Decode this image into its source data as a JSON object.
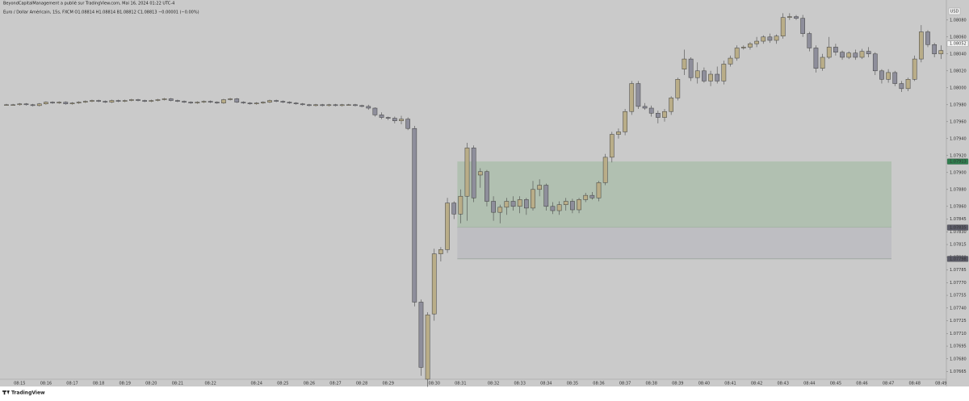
{
  "header": {
    "publisher": "BeyondCapitalManagement a publié sur TradingView.com, Mai 16, 2024 01:22 UTC-4",
    "symbol": "Euro / Dollar Américain, 15s, FXCM  O1.08814 H1.08814 B1.08812 C1.08813 −0.00001 (−0.00%)"
  },
  "footer": {
    "logo": "TradingView"
  },
  "chart_data": {
    "type": "candlestick",
    "currency": "USD",
    "up_color": "#b9ad88",
    "down_color": "#8e8e9b",
    "grid": false,
    "ylim": [
      1.07656,
      1.08096
    ],
    "yticks": [
      {
        "value": 1.0808,
        "label": "1.08080"
      },
      {
        "value": 1.0806,
        "label": "1.08060"
      },
      {
        "value": 1.0804,
        "label": "1.08040"
      },
      {
        "value": 1.0802,
        "label": "1.08020"
      },
      {
        "value": 1.08,
        "label": "1.08000"
      },
      {
        "value": 1.0798,
        "label": "1.07980"
      },
      {
        "value": 1.0796,
        "label": "1.07960"
      },
      {
        "value": 1.0794,
        "label": "1.07940"
      },
      {
        "value": 1.0792,
        "label": "1.07920"
      },
      {
        "value": 1.079,
        "label": "1.07900"
      },
      {
        "value": 1.0788,
        "label": "1.07880"
      },
      {
        "value": 1.0786,
        "label": "1.07860"
      },
      1.07845,
      {
        "value": 1.0783,
        "label": "1.07830"
      },
      1.07815,
      {
        "value": 1.078,
        "label": "1.07800"
      },
      1.07785,
      {
        "value": 1.0777,
        "label": "1.07770"
      },
      1.07755,
      {
        "value": 1.0774,
        "label": "1.07740"
      },
      1.07725,
      {
        "value": 1.0771,
        "label": "1.07710"
      },
      1.07695,
      {
        "value": 1.0768,
        "label": "1.07680"
      },
      1.07665
    ],
    "price_labels": [
      {
        "price": 1.08052,
        "color": "#f4f4f4",
        "text_color": "#333333"
      },
      {
        "price": 1.07913,
        "color": "#2f7d4e",
        "text_color": "#ffffff"
      },
      {
        "price": 1.07835,
        "color": "#5c5c68",
        "text_color": "#ffffff"
      },
      {
        "price": 1.07798,
        "color": "#5c5c68",
        "text_color": "#ffffff"
      }
    ],
    "zones": [
      {
        "top": 1.07913,
        "bottom": 1.07835,
        "color": "#b1c0b1"
      },
      {
        "top": 1.07835,
        "bottom": 1.07798,
        "color": "#bebec2"
      }
    ],
    "categories": [
      null,
      null,
      "08:15",
      null,
      null,
      null,
      "08:16",
      null,
      null,
      null,
      "08:17",
      null,
      null,
      null,
      "08:18",
      null,
      null,
      null,
      "08:19",
      null,
      null,
      null,
      "08:20",
      null,
      null,
      null,
      "08:21",
      null,
      null,
      null,
      null,
      "08:22",
      null,
      null,
      null,
      null,
      null,
      null,
      "08:24",
      null,
      null,
      null,
      "08:25",
      null,
      null,
      null,
      "08:26",
      null,
      null,
      null,
      "08:27",
      null,
      null,
      null,
      "08:28",
      null,
      null,
      null,
      "08:29",
      null,
      null,
      null,
      null,
      null,
      null,
      "08:30",
      null,
      null,
      null,
      "08:31",
      null,
      null,
      null,
      null,
      "08:32",
      null,
      null,
      null,
      "08:33",
      null,
      null,
      null,
      "08:34",
      null,
      null,
      null,
      "08:35",
      null,
      null,
      null,
      "08:36",
      null,
      null,
      null,
      "08:37",
      null,
      null,
      null,
      "08:38",
      null,
      null,
      null,
      "08:39",
      null,
      null,
      null,
      "08:40",
      null,
      null,
      null,
      "08:41",
      null,
      null,
      null,
      "08:42",
      null,
      null,
      null,
      "08:43",
      null,
      null,
      null,
      "08:44",
      null,
      null,
      null,
      "08:45",
      null,
      null,
      null,
      "08:46",
      null,
      null,
      null,
      "08:47",
      null,
      null,
      null,
      "08:48",
      null,
      null,
      null,
      "08:49"
    ],
    "open": [
      1.0798,
      1.0798,
      1.0798,
      1.07981,
      1.0798,
      1.07979,
      1.07981,
      1.07983,
      1.07982,
      1.07983,
      1.07981,
      1.07982,
      1.07983,
      1.07984,
      1.07985,
      1.07984,
      1.07983,
      1.07985,
      1.07984,
      1.07985,
      1.07986,
      1.07985,
      1.07984,
      1.07985,
      1.07986,
      1.07987,
      1.07985,
      1.07984,
      1.07983,
      1.07982,
      1.07983,
      1.07984,
      1.07983,
      1.07982,
      1.07986,
      1.07987,
      1.07983,
      1.07982,
      1.07981,
      1.07982,
      1.07983,
      1.07985,
      1.07984,
      1.07983,
      1.07982,
      1.07981,
      1.0798,
      1.07979,
      1.0798,
      1.07979,
      1.0798,
      1.07979,
      1.0798,
      1.0798,
      1.07979,
      1.07978,
      1.07976,
      1.07968,
      1.07965,
      1.07964,
      1.07961,
      1.07963,
      1.07952,
      1.07747,
      1.07656,
      1.07733,
      1.07804,
      1.07809,
      1.07864,
      1.07851,
      1.07872,
      1.07929,
      1.07897,
      1.07901,
      1.07866,
      1.07853,
      1.07859,
      1.07866,
      1.0786,
      1.07868,
      1.07858,
      1.0788,
      1.07885,
      1.0786,
      1.07855,
      1.07862,
      1.07866,
      1.07856,
      1.07868,
      1.07873,
      1.0787,
      1.07888,
      1.07918,
      1.07945,
      1.07948,
      1.07972,
      1.08005,
      1.07978,
      1.07976,
      1.0797,
      1.07965,
      1.07972,
      1.07988,
      1.08022,
      1.08034,
      1.08012,
      1.0802,
      1.08008,
      1.08016,
      1.08008,
      1.08028,
      1.08035,
      1.08047,
      1.08048,
      1.08052,
      1.08055,
      1.0806,
      1.08056,
      1.08061,
      1.08083,
      1.08084,
      1.08082,
      1.08064,
      1.08047,
      1.08023,
      1.08036,
      1.08048,
      1.08042,
      1.08036,
      1.08041,
      1.08036,
      1.08043,
      1.0804,
      1.0802,
      1.0801,
      1.08018,
      1.08005,
      1.07999,
      1.0801,
      1.08034,
      1.08066,
      1.08051,
      1.0804
    ],
    "high": [
      1.07981,
      1.07981,
      1.07982,
      1.07982,
      1.07981,
      1.07982,
      1.07984,
      1.07984,
      1.07984,
      1.07984,
      1.07983,
      1.07984,
      1.07985,
      1.07986,
      1.07986,
      1.07985,
      1.07986,
      1.07986,
      1.07986,
      1.07987,
      1.07987,
      1.07986,
      1.07986,
      1.07987,
      1.07988,
      1.07988,
      1.07986,
      1.07985,
      1.07984,
      1.07984,
      1.07985,
      1.07985,
      1.07984,
      1.07987,
      1.07988,
      1.07988,
      1.07984,
      1.07983,
      1.07983,
      1.07984,
      1.07986,
      1.07986,
      1.07985,
      1.07984,
      1.07983,
      1.07982,
      1.07981,
      1.07981,
      1.07981,
      1.07981,
      1.07981,
      1.07981,
      1.07981,
      1.07981,
      1.0798,
      1.0798,
      1.07977,
      1.07971,
      1.07966,
      1.07966,
      1.07967,
      1.07965,
      1.07955,
      1.0775,
      1.07735,
      1.0781,
      1.07812,
      1.0787,
      1.07866,
      1.0788,
      1.07935,
      1.07932,
      1.07905,
      1.07903,
      1.07872,
      1.07862,
      1.0787,
      1.07872,
      1.07872,
      1.0787,
      1.0789,
      1.07892,
      1.07887,
      1.07865,
      1.07866,
      1.0787,
      1.07869,
      1.0787,
      1.07876,
      1.07877,
      1.0789,
      1.07922,
      1.07948,
      1.07952,
      1.07975,
      1.08008,
      1.08008,
      1.07982,
      1.07979,
      1.07973,
      1.07975,
      1.0799,
      1.08012,
      1.08045,
      1.08036,
      1.0803,
      1.08024,
      1.0802,
      1.08025,
      1.08032,
      1.08038,
      1.0805,
      1.0805,
      1.08054,
      1.0806,
      1.08062,
      1.08064,
      1.08063,
      1.08088,
      1.08088,
      1.08086,
      1.08086,
      1.08066,
      1.0805,
      1.0804,
      1.0806,
      1.08052,
      1.08044,
      1.08043,
      1.08045,
      1.08046,
      1.08048,
      1.08042,
      1.08022,
      1.08022,
      1.0802,
      1.08008,
      1.08012,
      1.08038,
      1.08074,
      1.08068,
      1.08053,
      1.0805
    ],
    "low": [
      1.07979,
      1.07979,
      1.07979,
      1.07979,
      1.07978,
      1.07978,
      1.0798,
      1.07981,
      1.07981,
      1.0798,
      1.0798,
      1.07981,
      1.07982,
      1.07983,
      1.07983,
      1.07982,
      1.07982,
      1.07983,
      1.07983,
      1.07984,
      1.07984,
      1.07983,
      1.07983,
      1.07984,
      1.07985,
      1.07984,
      1.07983,
      1.07982,
      1.07981,
      1.07981,
      1.07982,
      1.07982,
      1.07981,
      1.07981,
      1.07985,
      1.07982,
      1.07981,
      1.0798,
      1.0798,
      1.07981,
      1.07982,
      1.07983,
      1.07982,
      1.07981,
      1.0798,
      1.07979,
      1.07978,
      1.07978,
      1.07978,
      1.07978,
      1.07978,
      1.07978,
      1.07979,
      1.07978,
      1.07977,
      1.07974,
      1.07966,
      1.07963,
      1.07962,
      1.07958,
      1.07957,
      1.0795,
      1.07742,
      1.0766,
      1.07647,
      1.07725,
      1.07795,
      1.07805,
      1.07845,
      1.0784,
      1.07843,
      1.07865,
      1.07882,
      1.0786,
      1.07843,
      1.0784,
      1.0785,
      1.07855,
      1.07852,
      1.0785,
      1.07855,
      1.07872,
      1.07855,
      1.07851,
      1.0785,
      1.07855,
      1.07852,
      1.07852,
      1.07865,
      1.07868,
      1.07866,
      1.07885,
      1.07912,
      1.0794,
      1.07944,
      1.07968,
      1.07975,
      1.07974,
      1.07966,
      1.07958,
      1.0796,
      1.07968,
      1.07985,
      1.08015,
      1.08008,
      1.08005,
      1.08006,
      1.08002,
      1.08005,
      1.08004,
      1.08025,
      1.08032,
      1.08045,
      1.08045,
      1.08048,
      1.08052,
      1.08053,
      1.08052,
      1.08058,
      1.0808,
      1.0808,
      1.0806,
      1.08043,
      1.08018,
      1.0802,
      1.08034,
      1.08038,
      1.08033,
      1.08034,
      1.08033,
      1.08034,
      1.08036,
      1.08015,
      1.08005,
      1.08006,
      1.08002,
      1.07995,
      1.07996,
      1.08008,
      1.0803,
      1.08048,
      1.08036,
      1.08034
    ],
    "close": [
      1.0798,
      1.0798,
      1.07981,
      1.0798,
      1.07979,
      1.07981,
      1.07983,
      1.07982,
      1.07983,
      1.07981,
      1.07982,
      1.07983,
      1.07984,
      1.07985,
      1.07984,
      1.07983,
      1.07985,
      1.07984,
      1.07985,
      1.07986,
      1.07985,
      1.07984,
      1.07985,
      1.07986,
      1.07987,
      1.07985,
      1.07984,
      1.07983,
      1.07982,
      1.07983,
      1.07984,
      1.07983,
      1.07982,
      1.07986,
      1.07987,
      1.07983,
      1.07982,
      1.07981,
      1.07982,
      1.07983,
      1.07985,
      1.07984,
      1.07983,
      1.07982,
      1.07981,
      1.0798,
      1.07979,
      1.0798,
      1.07979,
      1.0798,
      1.07979,
      1.0798,
      1.0798,
      1.07979,
      1.07978,
      1.07976,
      1.07968,
      1.07965,
      1.07964,
      1.07961,
      1.07963,
      1.07952,
      1.07747,
      1.0767,
      1.07732,
      1.07804,
      1.07809,
      1.07864,
      1.07851,
      1.07872,
      1.07929,
      1.0787,
      1.07901,
      1.07866,
      1.07853,
      1.07859,
      1.07866,
      1.0786,
      1.07868,
      1.07858,
      1.0788,
      1.07885,
      1.0786,
      1.07855,
      1.07862,
      1.07866,
      1.07856,
      1.07868,
      1.07873,
      1.0787,
      1.07888,
      1.07918,
      1.07945,
      1.07948,
      1.07972,
      1.08005,
      1.07978,
      1.07976,
      1.0797,
      1.07965,
      1.07972,
      1.07988,
      1.0801,
      1.08034,
      1.08012,
      1.0802,
      1.08008,
      1.08016,
      1.08008,
      1.08028,
      1.08035,
      1.08047,
      1.08048,
      1.08052,
      1.08055,
      1.0806,
      1.08056,
      1.08061,
      1.08083,
      1.08084,
      1.08082,
      1.08064,
      1.08047,
      1.08023,
      1.08036,
      1.08048,
      1.08042,
      1.08036,
      1.08041,
      1.08036,
      1.08043,
      1.0804,
      1.0802,
      1.0801,
      1.08018,
      1.08005,
      1.07999,
      1.0801,
      1.08034,
      1.08066,
      1.08051,
      1.0804,
      1.08044
    ]
  }
}
